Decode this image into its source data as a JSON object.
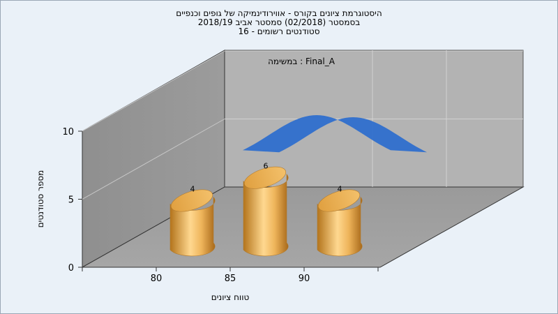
{
  "header": {
    "line1": "היסטוגרמת ציונים בקורס - אווירודינמיקה של גופים וכנפיים",
    "line2": "בסמסטר  (02/2018)  סמסטר אביב 2018/19",
    "line3": "סטודנטים רשומים - 16"
  },
  "chart_data": {
    "type": "bar",
    "title": "",
    "categories": [
      "80",
      "85",
      "90"
    ],
    "series": [
      {
        "name": "במשימה : Final_A",
        "values": [
          4,
          6,
          4
        ],
        "data_labels": [
          "4",
          "6",
          "4"
        ]
      }
    ],
    "xticks": [
      "80",
      "85",
      "90"
    ],
    "yticks": [
      "0",
      "5",
      "10"
    ],
    "ylim": [
      0,
      10
    ],
    "xlabel": "טווח ציונים",
    "ylabel": "מספר סטודנטים",
    "curve": {
      "type": "normal-fit",
      "color": "#2f6fce"
    },
    "bar_color": "#e0a040",
    "wall_color": "#a9a9a9",
    "grid": true,
    "legend_position": "top-center",
    "style": "3d"
  }
}
